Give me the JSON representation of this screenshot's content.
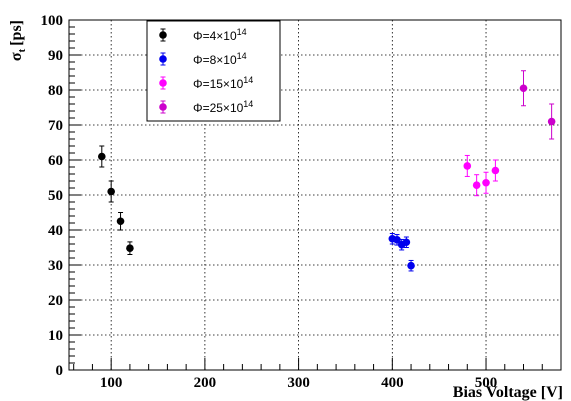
{
  "chart_data": {
    "type": "scatter",
    "xlabel": "Bias Voltage [V]",
    "ylabel_main": "σ",
    "ylabel_sub": "t",
    "ylabel_unit": "[ps]",
    "xlim": [
      55,
      580
    ],
    "ylim": [
      0,
      100
    ],
    "x_ticks": [
      100,
      200,
      300,
      400,
      500
    ],
    "y_ticks": [
      0,
      10,
      20,
      30,
      40,
      50,
      60,
      70,
      80,
      90,
      100
    ],
    "grid": true,
    "legend_position": "top-left",
    "series": [
      {
        "name": "Φ=4×10",
        "name_exp": "14",
        "color": "#000000",
        "points": [
          {
            "x": 90,
            "y": 61.0,
            "err": 3.0
          },
          {
            "x": 100,
            "y": 51.0,
            "err": 3.0
          },
          {
            "x": 110,
            "y": 42.5,
            "err": 2.5
          },
          {
            "x": 120,
            "y": 34.8,
            "err": 1.8
          }
        ]
      },
      {
        "name": "Φ=8×10",
        "name_exp": "14",
        "color": "#0000ee",
        "points": [
          {
            "x": 400,
            "y": 37.5,
            "err": 1.5
          },
          {
            "x": 405,
            "y": 37.2,
            "err": 1.5
          },
          {
            "x": 410,
            "y": 35.8,
            "err": 1.5
          },
          {
            "x": 415,
            "y": 36.5,
            "err": 1.5
          },
          {
            "x": 420,
            "y": 29.8,
            "err": 1.5
          }
        ]
      },
      {
        "name": "Φ=15×10",
        "name_exp": "14",
        "color": "#ff00ff",
        "points": [
          {
            "x": 480,
            "y": 58.3,
            "err": 3.0
          },
          {
            "x": 490,
            "y": 52.8,
            "err": 3.0
          },
          {
            "x": 500,
            "y": 53.5,
            "err": 3.0
          },
          {
            "x": 510,
            "y": 57.0,
            "err": 3.0
          }
        ]
      },
      {
        "name": "Φ=25×10",
        "name_exp": "14",
        "color": "#cc00cc",
        "points": [
          {
            "x": 540,
            "y": 80.5,
            "err": 5.0
          },
          {
            "x": 570,
            "y": 71.0,
            "err": 5.0
          }
        ]
      }
    ]
  }
}
